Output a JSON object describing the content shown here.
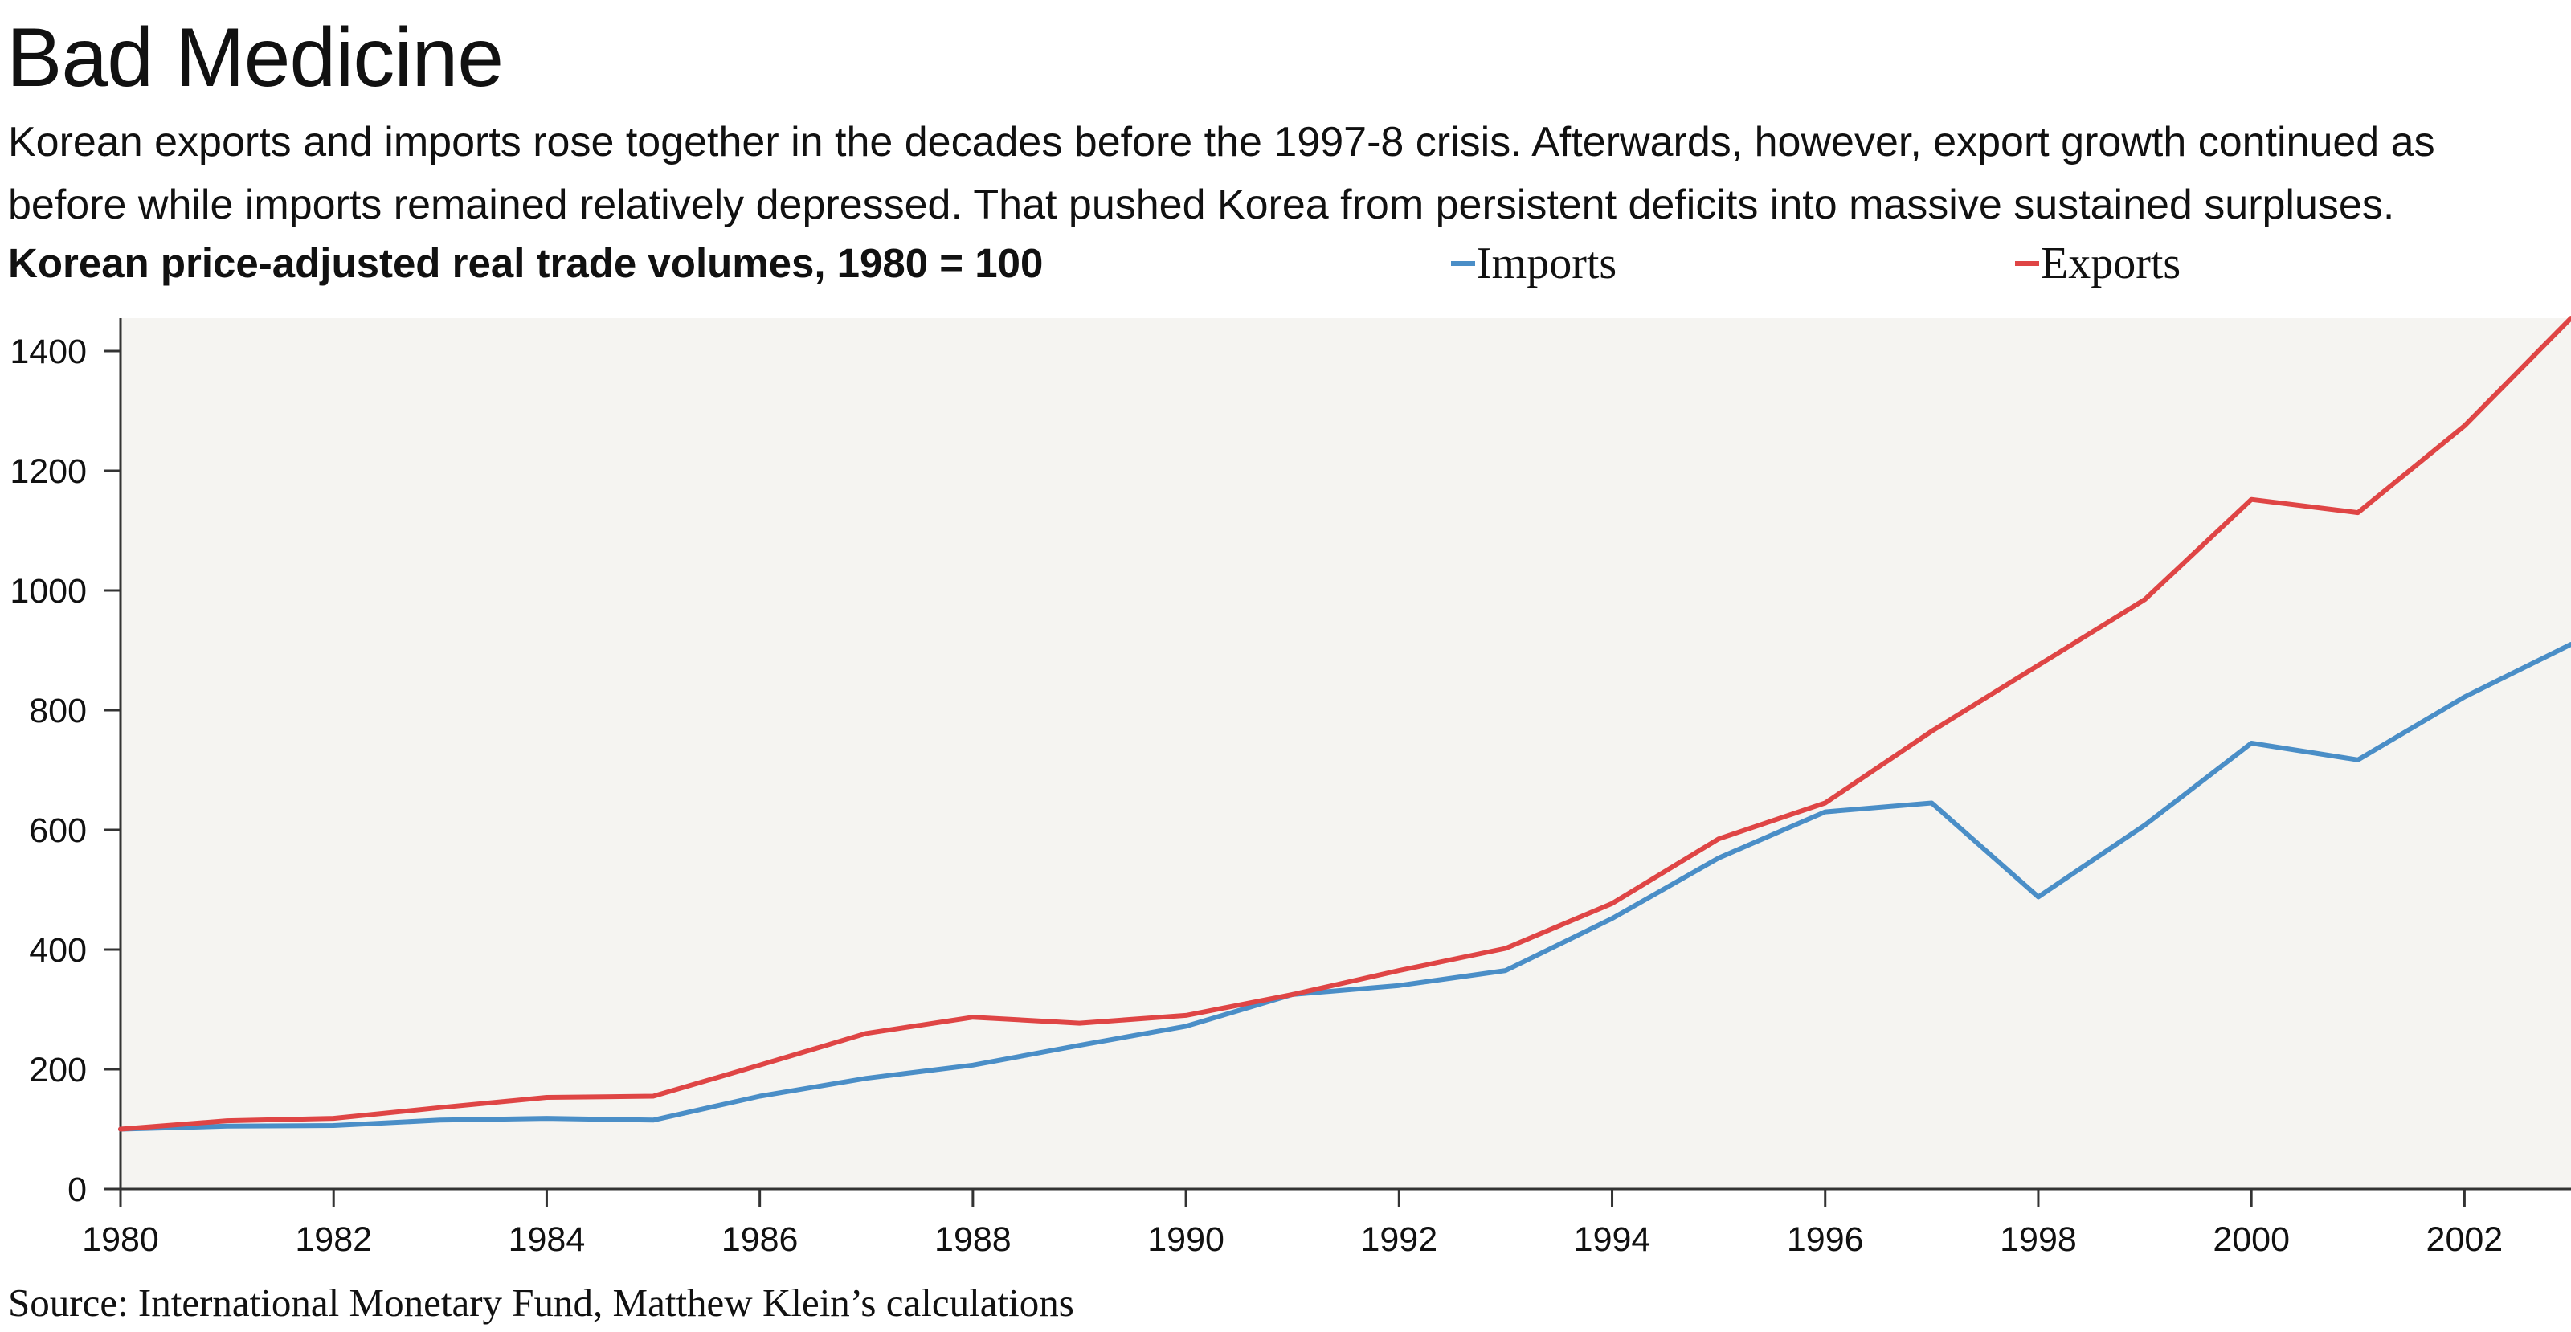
{
  "title": "Bad Medicine",
  "subtitle": "Korean exports and imports rose together in the decades before the 1997-8 crisis. Afterwards, however, export growth continued as before while imports remained relatively depressed. That pushed Korea from persistent deficits into massive sustained surpluses.",
  "source": "Source: International Monetary Fund, Matthew Klein’s calculations",
  "colors": {
    "imports": "#4a8ec7",
    "exports": "#df4545",
    "plot_background": "#f5f4f1",
    "axis": "#333333"
  },
  "chart_data": {
    "type": "line",
    "title": "Korean price-adjusted real trade volumes, 1980 = 100",
    "xlabel": "",
    "ylabel": "",
    "x": [
      1980,
      1981,
      1982,
      1983,
      1984,
      1985,
      1986,
      1987,
      1988,
      1989,
      1990,
      1991,
      1992,
      1993,
      1994,
      1995,
      1996,
      1997,
      1998,
      1999,
      2000,
      2001,
      2002,
      2003
    ],
    "series": [
      {
        "name": "Imports",
        "color": "#4a8ec7",
        "values": [
          100,
          105,
          106,
          115,
          118,
          115,
          155,
          185,
          207,
          240,
          272,
          325,
          340,
          365,
          452,
          553,
          630,
          645,
          488,
          608,
          745,
          717,
          822,
          910
        ]
      },
      {
        "name": "Exports",
        "color": "#df4545",
        "values": [
          100,
          114,
          118,
          136,
          153,
          155,
          207,
          260,
          287,
          277,
          290,
          325,
          365,
          402,
          477,
          585,
          645,
          765,
          875,
          985,
          1152,
          1130,
          1275,
          1455
        ]
      }
    ],
    "xlim": [
      1980,
      2003
    ],
    "ylim": [
      0,
      1455
    ],
    "x_ticks": [
      "1980",
      "1982",
      "1984",
      "1986",
      "1988",
      "1990",
      "1992",
      "1994",
      "1996",
      "1998",
      "2000",
      "2002"
    ],
    "y_ticks": [
      "0",
      "200",
      "400",
      "600",
      "800",
      "1000",
      "1200",
      "1400"
    ],
    "grid": false,
    "legend_position": "top"
  }
}
